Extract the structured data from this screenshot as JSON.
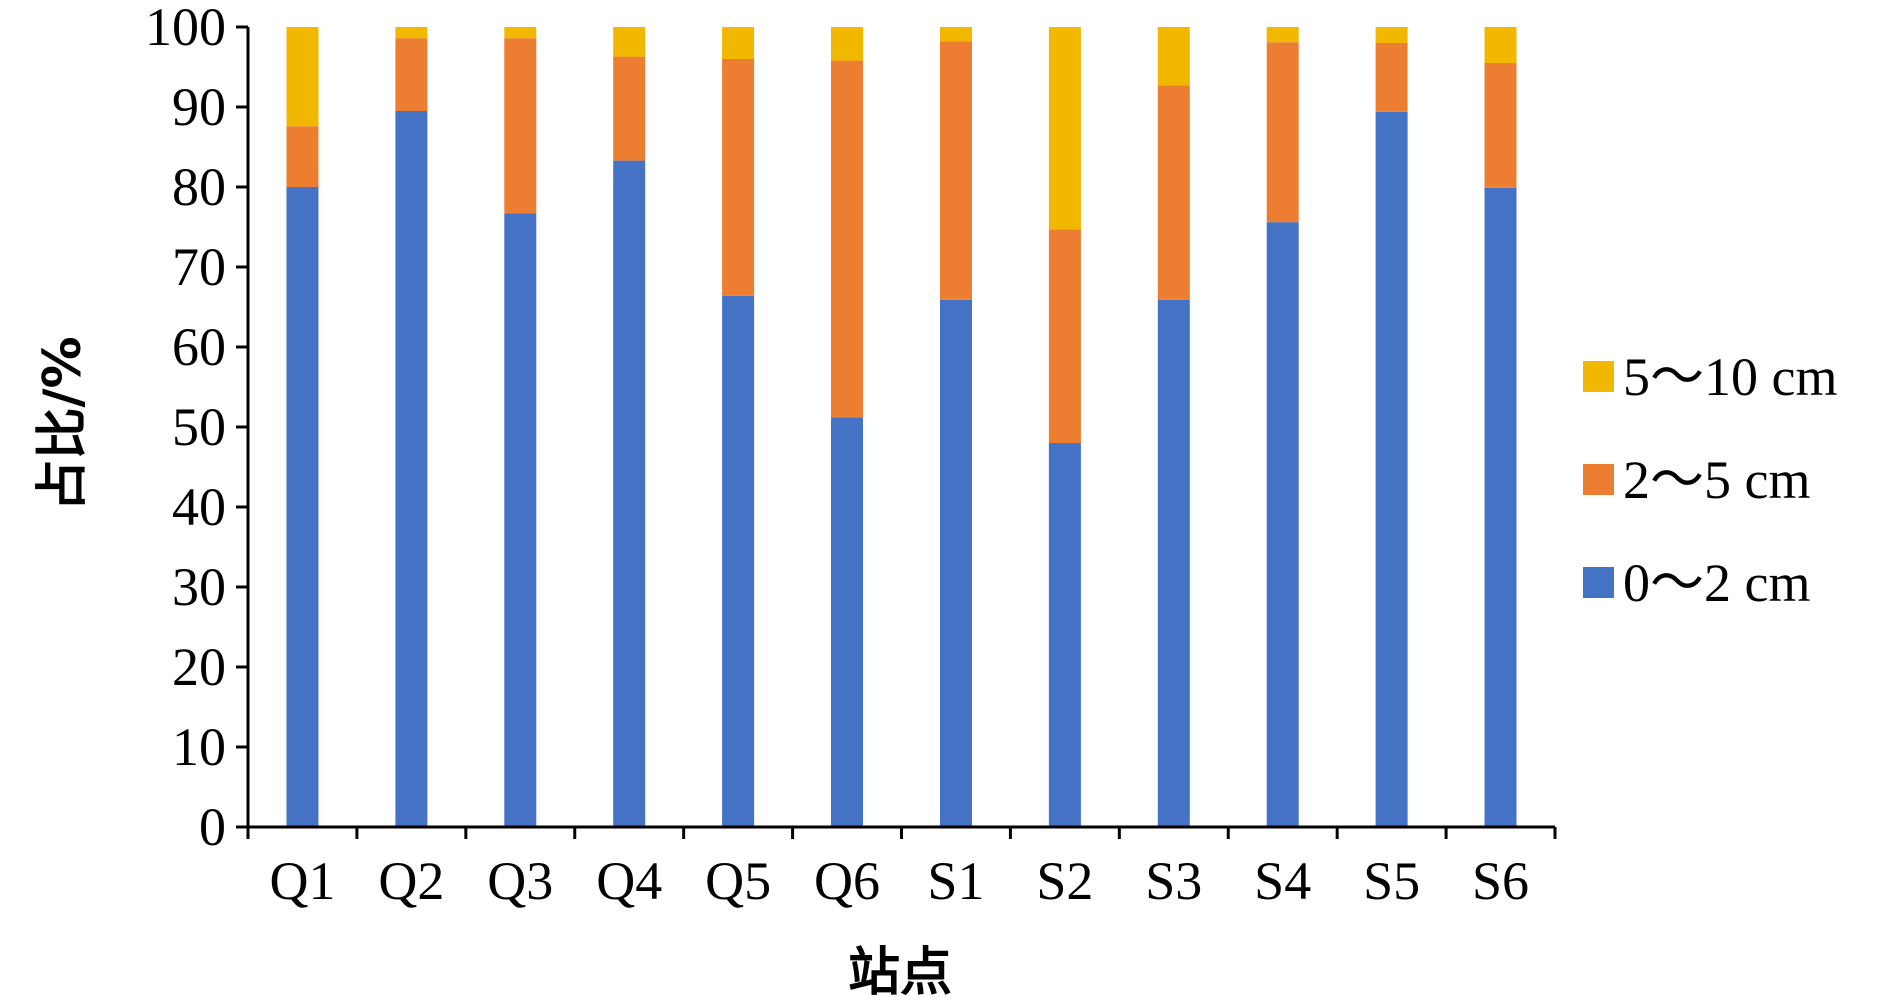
{
  "chart_data": {
    "type": "bar",
    "stacked": true,
    "categories": [
      "Q1",
      "Q2",
      "Q3",
      "Q4",
      "Q5",
      "Q6",
      "S1",
      "S2",
      "S3",
      "S4",
      "S5",
      "S6"
    ],
    "series": [
      {
        "name": "0～2 cm",
        "color": "#4472C4",
        "values": [
          80.0,
          89.5,
          76.7,
          83.3,
          66.4,
          51.2,
          65.9,
          48.0,
          65.9,
          75.6,
          89.4,
          79.9
        ]
      },
      {
        "name": "2～5 cm",
        "color": "#ED7D31",
        "values": [
          7.6,
          9.1,
          21.9,
          13.0,
          29.6,
          44.6,
          32.3,
          26.7,
          26.8,
          22.5,
          8.6,
          15.6
        ]
      },
      {
        "name": "5～10 cm",
        "color": "#F2B800",
        "values": [
          12.4,
          1.4,
          1.4,
          3.7,
          4.0,
          4.2,
          1.8,
          25.3,
          7.3,
          1.9,
          2.0,
          4.5
        ]
      }
    ],
    "xlabel": "站点",
    "ylabel": "占比/%",
    "ylim": [
      0,
      100
    ],
    "yticks": [
      0,
      10,
      20,
      30,
      40,
      50,
      60,
      70,
      80,
      90,
      100
    ],
    "grid": false,
    "legend_position": "right",
    "legend_order": [
      "5～10 cm",
      "2～5 cm",
      "0～2 cm"
    ]
  }
}
